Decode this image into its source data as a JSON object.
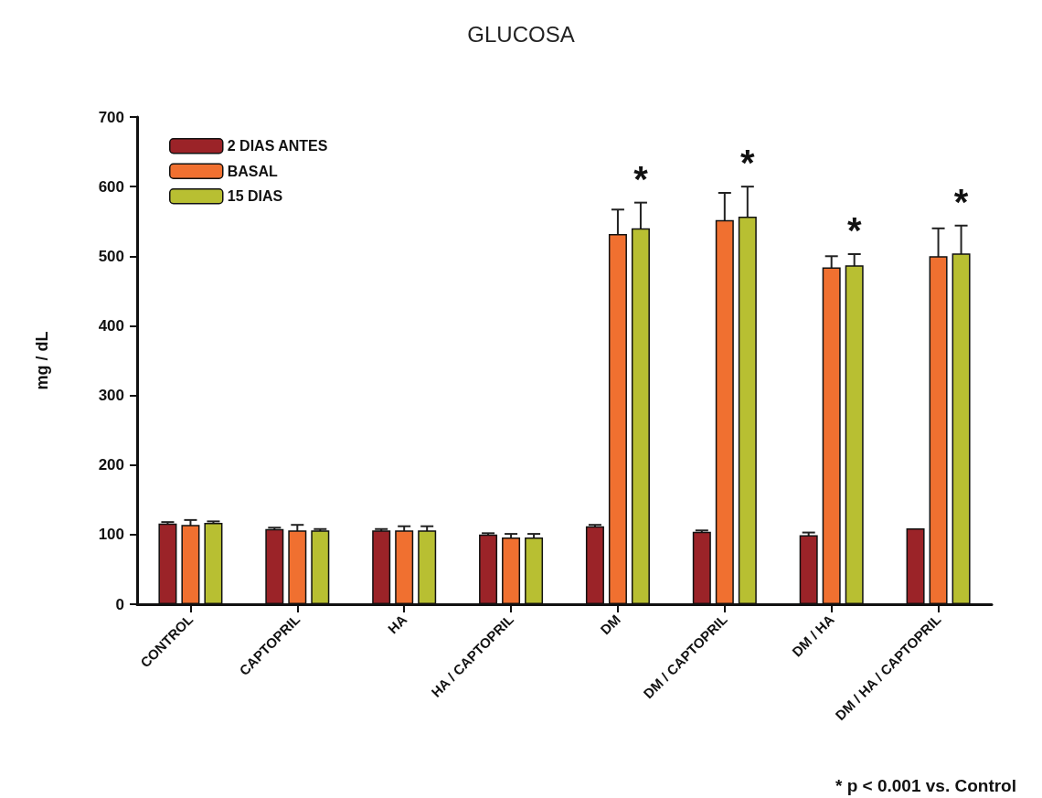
{
  "chart_data": {
    "type": "bar",
    "title": "GLUCOSA",
    "ylabel": "mg / dL",
    "categories": [
      "CONTROL",
      "CAPTOPRIL",
      "HA",
      "HA / CAPTOPRIL",
      "DM",
      "DM / CAPTOPRIL",
      "DM / HA",
      "DM / HA / CAPTOPRIL"
    ],
    "series": [
      {
        "name": "2 DIAS ANTES",
        "color": "#9b2328",
        "values": [
          116,
          108,
          106,
          100,
          112,
          104,
          99,
          109
        ],
        "errors": [
          2,
          2,
          2,
          2,
          2,
          2,
          4,
          null
        ]
      },
      {
        "name": "BASAL",
        "color": "#f07030",
        "values": [
          114,
          106,
          106,
          96,
          532,
          552,
          484,
          500
        ],
        "errors": [
          7,
          8,
          6,
          5,
          35,
          39,
          16,
          40
        ]
      },
      {
        "name": "15 DIAS",
        "color": "#b8bf32",
        "values": [
          117,
          106,
          106,
          96,
          540,
          557,
          487,
          504
        ],
        "errors": [
          2,
          2,
          6,
          5,
          37,
          43,
          16,
          40
        ]
      }
    ],
    "ylim": [
      0,
      700
    ],
    "yticks": [
      0,
      100,
      200,
      300,
      400,
      500,
      600,
      700
    ],
    "legend": "top left",
    "annotations": [
      {
        "text": "*",
        "x": "DM",
        "y": 540
      },
      {
        "text": "*",
        "x": "DM / CAPTOPRIL",
        "y": 557
      },
      {
        "text": "*",
        "x": "DM / HA",
        "y": 487
      },
      {
        "text": "*",
        "x": "DM / HA / CAPTOPRIL",
        "y": 504
      },
      "* p < 0.001 vs. Control"
    ]
  }
}
